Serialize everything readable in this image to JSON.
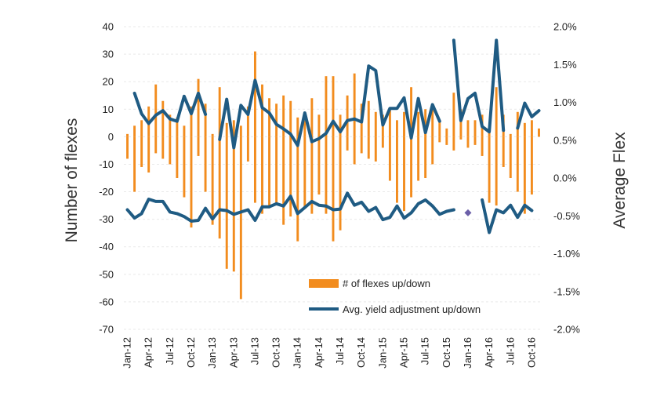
{
  "chart_data": {
    "type": "bar",
    "title": "",
    "ylabel": "Number of flexes",
    "y2label": "Average Flex",
    "ylim": [
      -70,
      40
    ],
    "y2lim": [
      -2.0,
      2.0
    ],
    "yticks": [
      "40",
      "30",
      "20",
      "10",
      "0",
      "-10",
      "-20",
      "-30",
      "-40",
      "-50",
      "-60",
      "-70"
    ],
    "y2ticks": [
      "2.0%",
      "1.5%",
      "1.0%",
      "0.5%",
      "0.0%",
      "-0.5%",
      "-1.0%",
      "-1.5%",
      "-2.0%"
    ],
    "grid": true,
    "legend_position": "lower-right",
    "x": [
      "Jan-12",
      "Feb-12",
      "Mar-12",
      "Apr-12",
      "May-12",
      "Jun-12",
      "Jul-12",
      "Aug-12",
      "Sep-12",
      "Oct-12",
      "Nov-12",
      "Dec-12",
      "Jan-13",
      "Feb-13",
      "Mar-13",
      "Apr-13",
      "May-13",
      "Jun-13",
      "Jul-13",
      "Aug-13",
      "Sep-13",
      "Oct-13",
      "Nov-13",
      "Dec-13",
      "Jan-14",
      "Feb-14",
      "Mar-14",
      "Apr-14",
      "May-14",
      "Jun-14",
      "Jul-14",
      "Aug-14",
      "Sep-14",
      "Oct-14",
      "Nov-14",
      "Dec-14",
      "Jan-15",
      "Feb-15",
      "Mar-15",
      "Apr-15",
      "May-15",
      "Jun-15",
      "Jul-15",
      "Aug-15",
      "Sep-15",
      "Oct-15",
      "Nov-15",
      "Dec-15",
      "Jan-16",
      "Feb-16",
      "Mar-16",
      "Apr-16",
      "May-16",
      "Jun-16",
      "Jul-16",
      "Aug-16",
      "Sep-16",
      "Oct-16",
      "Nov-16"
    ],
    "xtick_labels": [
      "Jan-12",
      "Apr-12",
      "Jul-12",
      "Oct-12",
      "Jan-13",
      "Apr-13",
      "Jul-13",
      "Oct-13",
      "Jan-14",
      "Apr-14",
      "Jul-14",
      "Oct-14",
      "Jan-15",
      "Apr-15",
      "Jul-15",
      "Oct-15",
      "Jan-16",
      "Apr-16",
      "Jul-16",
      "Oct-16"
    ],
    "series": [
      {
        "name": "# of flexes up/down",
        "kind": "bar",
        "color": "#F28C1E",
        "up": [
          1,
          4,
          6,
          11,
          19,
          13,
          8,
          7,
          4,
          11,
          21,
          12,
          1,
          18,
          5,
          6,
          4,
          11,
          31,
          19,
          14,
          12,
          15,
          13,
          7,
          6,
          14,
          8,
          22,
          22,
          8,
          15,
          23,
          12,
          13,
          9,
          8,
          10,
          6,
          9,
          18,
          9,
          10,
          11,
          6,
          3,
          16,
          10,
          6,
          6,
          8,
          3,
          18,
          8,
          1,
          9,
          5,
          6,
          3
        ],
        "down": [
          -8,
          -20,
          -11,
          -13,
          -6,
          -8,
          -10,
          -15,
          -22,
          -33,
          -7,
          -20,
          -32,
          -37,
          -48,
          -49,
          -59,
          -9,
          -24,
          -28,
          -26,
          -25,
          -32,
          -29,
          -38,
          -26,
          -28,
          -21,
          -28,
          -38,
          -34,
          -5,
          -10,
          -6,
          -8,
          -9,
          -4,
          -16,
          -24,
          -27,
          -22,
          -16,
          -15,
          -10,
          -2,
          -3,
          -5,
          -1,
          -4,
          -3,
          -7,
          -24,
          -25,
          -11,
          -15,
          -20,
          -28,
          -21,
          0
        ]
      },
      {
        "name": "Avg. yield adjustment up/down",
        "kind": "line",
        "axis": "right",
        "color": "#1F5B83",
        "up": [
          null,
          1.12,
          0.85,
          0.72,
          0.83,
          0.89,
          0.78,
          0.75,
          1.08,
          0.85,
          1.12,
          0.84,
          null,
          0.51,
          1.04,
          0.4,
          0.96,
          0.84,
          1.29,
          0.93,
          0.86,
          0.71,
          0.65,
          0.58,
          0.43,
          0.86,
          0.48,
          0.52,
          0.59,
          0.75,
          0.61,
          0.76,
          0.78,
          0.74,
          1.48,
          1.42,
          0.7,
          0.92,
          0.92,
          1.06,
          0.53,
          1.05,
          0.6,
          0.97,
          0.75,
          null,
          1.82,
          0.76,
          1.05,
          1.12,
          0.68,
          0.61,
          1.82,
          0.63,
          null,
          0.66,
          0.99,
          0.81,
          0.89
        ],
        "down": [
          -0.42,
          -0.53,
          -0.47,
          -0.28,
          -0.31,
          -0.31,
          -0.45,
          -0.47,
          -0.51,
          -0.57,
          -0.56,
          -0.4,
          -0.54,
          -0.42,
          -0.43,
          -0.48,
          -0.45,
          -0.42,
          -0.56,
          -0.38,
          -0.38,
          -0.34,
          -0.37,
          -0.24,
          -0.47,
          -0.39,
          -0.31,
          -0.36,
          -0.37,
          -0.42,
          -0.41,
          -0.2,
          -0.36,
          -0.32,
          -0.44,
          -0.39,
          -0.55,
          -0.52,
          -0.37,
          -0.53,
          -0.46,
          -0.34,
          -0.29,
          -0.37,
          -0.48,
          -0.44,
          -0.42,
          null,
          -0.46,
          null,
          -0.29,
          -0.72,
          -0.42,
          -0.46,
          -0.36,
          -0.52,
          -0.36,
          -0.43,
          null
        ]
      }
    ],
    "annotation_marker": {
      "x": "Jan-16",
      "value": -0.46,
      "shape": "diamond",
      "color": "#6B5FA8"
    }
  }
}
